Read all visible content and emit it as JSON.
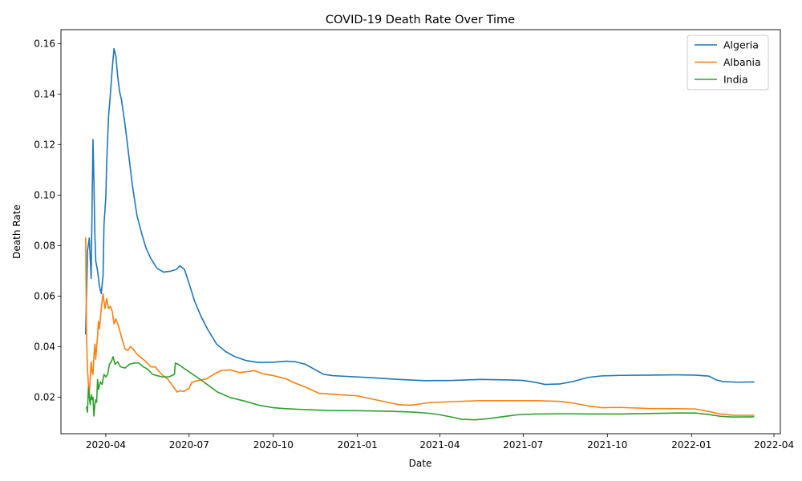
{
  "chart_data": {
    "type": "line",
    "title": "COVID-19 Death Rate Over Time",
    "xlabel": "Date",
    "ylabel": "Death Rate",
    "xlim": [
      "2020-02-12",
      "2022-04-08"
    ],
    "ylim": [
      0.0055,
      0.1655
    ],
    "x_ticks": [
      "2020-04",
      "2020-07",
      "2020-10",
      "2021-01",
      "2021-04",
      "2021-07",
      "2021-10",
      "2022-01",
      "2022-04"
    ],
    "y_ticks": [
      "0.02",
      "0.04",
      "0.06",
      "0.08",
      "0.10",
      "0.12",
      "0.14",
      "0.16"
    ],
    "grid": false,
    "legend_position": "top-right",
    "series": [
      {
        "name": "Algeria",
        "color": "#1f77b4",
        "points": [
          [
            "2020-03-10",
            0.045
          ],
          [
            "2020-03-12",
            0.078
          ],
          [
            "2020-03-14",
            0.083
          ],
          [
            "2020-03-16",
            0.067
          ],
          [
            "2020-03-17",
            0.095
          ],
          [
            "2020-03-18",
            0.122
          ],
          [
            "2020-03-19",
            0.106
          ],
          [
            "2020-03-20",
            0.085
          ],
          [
            "2020-03-21",
            0.074
          ],
          [
            "2020-03-23",
            0.07
          ],
          [
            "2020-03-25",
            0.064
          ],
          [
            "2020-03-27",
            0.061
          ],
          [
            "2020-03-29",
            0.068
          ],
          [
            "2020-03-30",
            0.088
          ],
          [
            "2020-04-01",
            0.099
          ],
          [
            "2020-04-02",
            0.113
          ],
          [
            "2020-04-04",
            0.131
          ],
          [
            "2020-04-06",
            0.14
          ],
          [
            "2020-04-08",
            0.15
          ],
          [
            "2020-04-10",
            0.158
          ],
          [
            "2020-04-12",
            0.155
          ],
          [
            "2020-04-14",
            0.147
          ],
          [
            "2020-04-16",
            0.141
          ],
          [
            "2020-04-18",
            0.138
          ],
          [
            "2020-04-22",
            0.128
          ],
          [
            "2020-04-26",
            0.116
          ],
          [
            "2020-04-30",
            0.104
          ],
          [
            "2020-05-05",
            0.092
          ],
          [
            "2020-05-10",
            0.085
          ],
          [
            "2020-05-15",
            0.079
          ],
          [
            "2020-05-20",
            0.075
          ],
          [
            "2020-05-27",
            0.071
          ],
          [
            "2020-06-03",
            0.0695
          ],
          [
            "2020-06-10",
            0.0698
          ],
          [
            "2020-06-17",
            0.0705
          ],
          [
            "2020-06-21",
            0.072
          ],
          [
            "2020-06-26",
            0.0705
          ],
          [
            "2020-07-01",
            0.065
          ],
          [
            "2020-07-07",
            0.058
          ],
          [
            "2020-07-14",
            0.052
          ],
          [
            "2020-07-21",
            0.047
          ],
          [
            "2020-07-31",
            0.041
          ],
          [
            "2020-08-10",
            0.038
          ],
          [
            "2020-08-20",
            0.036
          ],
          [
            "2020-09-01",
            0.0345
          ],
          [
            "2020-09-15",
            0.0337
          ],
          [
            "2020-10-01",
            0.0338
          ],
          [
            "2020-10-15",
            0.0342
          ],
          [
            "2020-10-25",
            0.034
          ],
          [
            "2020-11-05",
            0.033
          ],
          [
            "2020-11-15",
            0.031
          ],
          [
            "2020-11-25",
            0.029
          ],
          [
            "2020-12-05",
            0.0285
          ],
          [
            "2020-12-20",
            0.0282
          ],
          [
            "2021-01-15",
            0.0277
          ],
          [
            "2021-02-15",
            0.027
          ],
          [
            "2021-03-15",
            0.0265
          ],
          [
            "2021-04-15",
            0.0266
          ],
          [
            "2021-05-15",
            0.027
          ],
          [
            "2021-06-15",
            0.0268
          ],
          [
            "2021-07-01",
            0.0266
          ],
          [
            "2021-07-15",
            0.0258
          ],
          [
            "2021-07-25",
            0.025
          ],
          [
            "2021-08-10",
            0.0252
          ],
          [
            "2021-08-25",
            0.0262
          ],
          [
            "2021-09-10",
            0.0278
          ],
          [
            "2021-09-25",
            0.0284
          ],
          [
            "2021-10-15",
            0.0286
          ],
          [
            "2021-11-15",
            0.0287
          ],
          [
            "2021-12-15",
            0.0288
          ],
          [
            "2022-01-05",
            0.0287
          ],
          [
            "2022-01-20",
            0.0283
          ],
          [
            "2022-01-28",
            0.0268
          ],
          [
            "2022-02-05",
            0.0261
          ],
          [
            "2022-02-20",
            0.0259
          ],
          [
            "2022-03-10",
            0.026
          ]
        ]
      },
      {
        "name": "Albania",
        "color": "#ff7f0e",
        "points": [
          [
            "2020-03-10",
            0.083
          ],
          [
            "2020-03-11",
            0.043
          ],
          [
            "2020-03-12",
            0.031
          ],
          [
            "2020-03-13",
            0.025
          ],
          [
            "2020-03-14",
            0.021
          ],
          [
            "2020-03-15",
            0.028
          ],
          [
            "2020-03-16",
            0.034
          ],
          [
            "2020-03-17",
            0.03
          ],
          [
            "2020-03-18",
            0.029
          ],
          [
            "2020-03-19",
            0.036
          ],
          [
            "2020-03-20",
            0.041
          ],
          [
            "2020-03-21",
            0.035
          ],
          [
            "2020-03-22",
            0.04
          ],
          [
            "2020-03-23",
            0.044
          ],
          [
            "2020-03-24",
            0.05
          ],
          [
            "2020-03-25",
            0.047
          ],
          [
            "2020-03-27",
            0.055
          ],
          [
            "2020-03-29",
            0.061
          ],
          [
            "2020-03-31",
            0.055
          ],
          [
            "2020-04-02",
            0.059
          ],
          [
            "2020-04-04",
            0.055
          ],
          [
            "2020-04-06",
            0.056
          ],
          [
            "2020-04-08",
            0.054
          ],
          [
            "2020-04-10",
            0.049
          ],
          [
            "2020-04-12",
            0.051
          ],
          [
            "2020-04-15",
            0.048
          ],
          [
            "2020-04-18",
            0.044
          ],
          [
            "2020-04-22",
            0.039
          ],
          [
            "2020-04-25",
            0.0385
          ],
          [
            "2020-04-28",
            0.04
          ],
          [
            "2020-05-01",
            0.039
          ],
          [
            "2020-05-05",
            0.037
          ],
          [
            "2020-05-10",
            0.0355
          ],
          [
            "2020-05-15",
            0.034
          ],
          [
            "2020-05-20",
            0.032
          ],
          [
            "2020-05-25",
            0.032
          ],
          [
            "2020-06-01",
            0.029
          ],
          [
            "2020-06-08",
            0.027
          ],
          [
            "2020-06-14",
            0.024
          ],
          [
            "2020-06-18",
            0.022
          ],
          [
            "2020-06-21",
            0.0225
          ],
          [
            "2020-06-25",
            0.0222
          ],
          [
            "2020-07-01",
            0.0235
          ],
          [
            "2020-07-04",
            0.0258
          ],
          [
            "2020-07-10",
            0.0265
          ],
          [
            "2020-07-20",
            0.0272
          ],
          [
            "2020-07-28",
            0.029
          ],
          [
            "2020-08-05",
            0.0305
          ],
          [
            "2020-08-15",
            0.0308
          ],
          [
            "2020-08-25",
            0.0297
          ],
          [
            "2020-09-05",
            0.0302
          ],
          [
            "2020-09-10",
            0.0305
          ],
          [
            "2020-09-20",
            0.0292
          ],
          [
            "2020-10-01",
            0.0285
          ],
          [
            "2020-10-15",
            0.0272
          ],
          [
            "2020-10-25",
            0.0255
          ],
          [
            "2020-11-05",
            0.024
          ],
          [
            "2020-11-20",
            0.0215
          ],
          [
            "2020-12-10",
            0.021
          ],
          [
            "2021-01-01",
            0.0205
          ],
          [
            "2021-01-20",
            0.019
          ],
          [
            "2021-02-15",
            0.017
          ],
          [
            "2021-03-01",
            0.0168
          ],
          [
            "2021-03-20",
            0.0178
          ],
          [
            "2021-04-15",
            0.0182
          ],
          [
            "2021-05-15",
            0.0186
          ],
          [
            "2021-06-15",
            0.0186
          ],
          [
            "2021-07-15",
            0.0186
          ],
          [
            "2021-08-10",
            0.0183
          ],
          [
            "2021-08-25",
            0.0176
          ],
          [
            "2021-09-10",
            0.0165
          ],
          [
            "2021-09-25",
            0.0158
          ],
          [
            "2021-10-15",
            0.0159
          ],
          [
            "2021-11-15",
            0.0155
          ],
          [
            "2021-12-15",
            0.0154
          ],
          [
            "2022-01-05",
            0.0153
          ],
          [
            "2022-01-20",
            0.0143
          ],
          [
            "2022-02-01",
            0.0133
          ],
          [
            "2022-02-15",
            0.0128
          ],
          [
            "2022-03-10",
            0.0128
          ]
        ]
      },
      {
        "name": "India",
        "color": "#2ca02c",
        "points": [
          [
            "2020-03-11",
            0.016
          ],
          [
            "2020-03-12",
            0.014
          ],
          [
            "2020-03-13",
            0.024
          ],
          [
            "2020-03-14",
            0.02
          ],
          [
            "2020-03-15",
            0.017
          ],
          [
            "2020-03-16",
            0.021
          ],
          [
            "2020-03-17",
            0.019
          ],
          [
            "2020-03-18",
            0.02
          ],
          [
            "2020-03-19",
            0.0125
          ],
          [
            "2020-03-20",
            0.017
          ],
          [
            "2020-03-21",
            0.019
          ],
          [
            "2020-03-22",
            0.018
          ],
          [
            "2020-03-23",
            0.027
          ],
          [
            "2020-03-24",
            0.023
          ],
          [
            "2020-03-26",
            0.026
          ],
          [
            "2020-03-28",
            0.025
          ],
          [
            "2020-03-30",
            0.029
          ],
          [
            "2020-04-01",
            0.028
          ],
          [
            "2020-04-03",
            0.029
          ],
          [
            "2020-04-05",
            0.033
          ],
          [
            "2020-04-07",
            0.034
          ],
          [
            "2020-04-09",
            0.036
          ],
          [
            "2020-04-11",
            0.033
          ],
          [
            "2020-04-14",
            0.034
          ],
          [
            "2020-04-17",
            0.032
          ],
          [
            "2020-04-22",
            0.0315
          ],
          [
            "2020-04-27",
            0.033
          ],
          [
            "2020-05-02",
            0.0335
          ],
          [
            "2020-05-07",
            0.0335
          ],
          [
            "2020-05-12",
            0.032
          ],
          [
            "2020-05-17",
            0.031
          ],
          [
            "2020-05-22",
            0.029
          ],
          [
            "2020-05-27",
            0.0285
          ],
          [
            "2020-06-02",
            0.028
          ],
          [
            "2020-06-09",
            0.028
          ],
          [
            "2020-06-15",
            0.029
          ],
          [
            "2020-06-16",
            0.0335
          ],
          [
            "2020-06-20",
            0.0328
          ],
          [
            "2020-06-25",
            0.0315
          ],
          [
            "2020-07-01",
            0.03
          ],
          [
            "2020-07-10",
            0.0278
          ],
          [
            "2020-07-20",
            0.0252
          ],
          [
            "2020-08-01",
            0.022
          ],
          [
            "2020-08-15",
            0.0198
          ],
          [
            "2020-09-01",
            0.0183
          ],
          [
            "2020-09-15",
            0.0168
          ],
          [
            "2020-10-01",
            0.0158
          ],
          [
            "2020-10-15",
            0.0154
          ],
          [
            "2020-11-01",
            0.0151
          ],
          [
            "2020-12-01",
            0.0147
          ],
          [
            "2021-01-01",
            0.0146
          ],
          [
            "2021-02-01",
            0.0144
          ],
          [
            "2021-03-01",
            0.0141
          ],
          [
            "2021-03-20",
            0.0136
          ],
          [
            "2021-04-01",
            0.013
          ],
          [
            "2021-04-15",
            0.012
          ],
          [
            "2021-04-25",
            0.0112
          ],
          [
            "2021-05-10",
            0.011
          ],
          [
            "2021-05-25",
            0.0115
          ],
          [
            "2021-06-10",
            0.0123
          ],
          [
            "2021-06-25",
            0.013
          ],
          [
            "2021-07-15",
            0.0133
          ],
          [
            "2021-08-15",
            0.0134
          ],
          [
            "2021-09-15",
            0.0133
          ],
          [
            "2021-10-15",
            0.0133
          ],
          [
            "2021-11-15",
            0.0135
          ],
          [
            "2021-12-15",
            0.0137
          ],
          [
            "2022-01-05",
            0.0137
          ],
          [
            "2022-01-20",
            0.0131
          ],
          [
            "2022-02-01",
            0.0124
          ],
          [
            "2022-02-15",
            0.0121
          ],
          [
            "2022-03-10",
            0.0122
          ]
        ]
      }
    ]
  }
}
